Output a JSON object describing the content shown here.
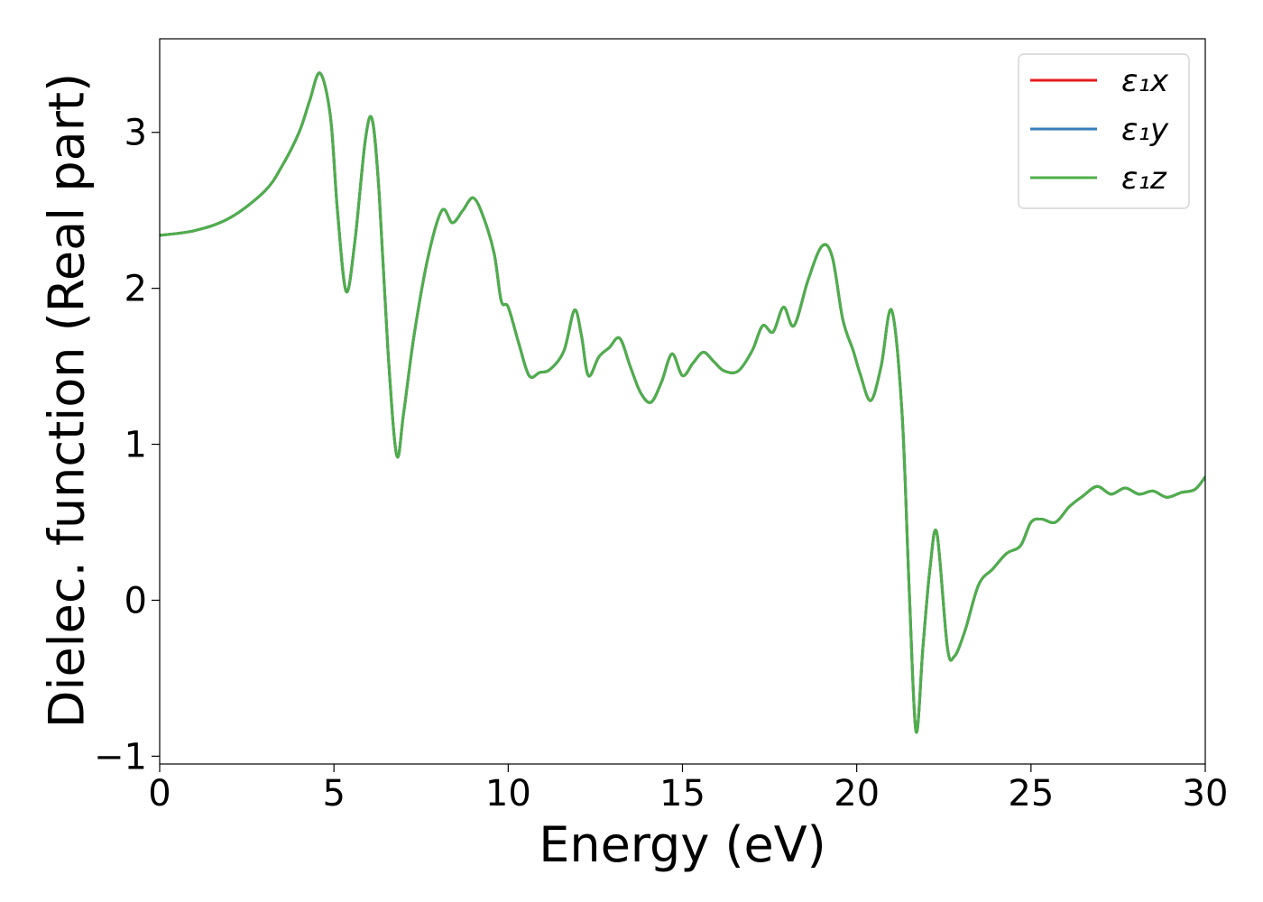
{
  "chart_data": {
    "type": "line",
    "title": "",
    "xlabel": "Energy (eV)",
    "ylabel": "Dielec. function (Real part)",
    "xlim": [
      0,
      30
    ],
    "ylim": [
      -1.05,
      3.6
    ],
    "xticks": [
      0,
      5,
      10,
      15,
      20,
      25,
      30
    ],
    "xtick_labels": [
      "0",
      "5",
      "10",
      "15",
      "20",
      "25",
      "30"
    ],
    "yticks": [
      -1,
      0,
      1,
      2,
      3
    ],
    "ytick_labels": [
      "−1",
      "0",
      "1",
      "2",
      "3"
    ],
    "grid": false,
    "legend_position": "top-right",
    "series": [
      {
        "name": "ε₁x",
        "color": "#e41a1c"
      },
      {
        "name": "ε₁y",
        "color": "#377eb8"
      },
      {
        "name": "ε₁z",
        "color": "#4daf4a"
      }
    ],
    "x": [
      0,
      1,
      2,
      3,
      3.5,
      4,
      4.3,
      4.6,
      4.9,
      5.1,
      5.35,
      5.6,
      5.9,
      6.1,
      6.3,
      6.55,
      6.8,
      7.0,
      7.3,
      7.7,
      8.1,
      8.4,
      8.7,
      9.0,
      9.3,
      9.6,
      9.8,
      10.0,
      10.3,
      10.6,
      10.9,
      11.2,
      11.6,
      11.9,
      12.1,
      12.3,
      12.6,
      12.9,
      13.2,
      13.5,
      13.8,
      14.1,
      14.4,
      14.7,
      15.0,
      15.3,
      15.6,
      15.9,
      16.2,
      16.6,
      17.0,
      17.3,
      17.6,
      17.9,
      18.2,
      18.6,
      19.0,
      19.3,
      19.6,
      19.9,
      20.1,
      20.4,
      20.7,
      21.0,
      21.3,
      21.5,
      21.7,
      21.9,
      22.1,
      22.3,
      22.6,
      22.8,
      23.1,
      23.5,
      23.9,
      24.3,
      24.7,
      25.0,
      25.3,
      25.7,
      26.1,
      26.5,
      26.9,
      27.3,
      27.7,
      28.1,
      28.5,
      28.9,
      29.3,
      29.7,
      30.0
    ],
    "y_shared": [
      2.34,
      2.37,
      2.45,
      2.62,
      2.78,
      3.0,
      3.2,
      3.38,
      3.1,
      2.5,
      1.98,
      2.3,
      2.95,
      3.08,
      2.6,
      1.6,
      0.93,
      1.2,
      1.7,
      2.2,
      2.5,
      2.42,
      2.5,
      2.58,
      2.45,
      2.22,
      1.92,
      1.88,
      1.65,
      1.44,
      1.46,
      1.48,
      1.6,
      1.86,
      1.7,
      1.44,
      1.56,
      1.62,
      1.68,
      1.5,
      1.33,
      1.27,
      1.4,
      1.58,
      1.44,
      1.52,
      1.59,
      1.53,
      1.47,
      1.47,
      1.6,
      1.76,
      1.72,
      1.88,
      1.76,
      2.05,
      2.27,
      2.2,
      1.8,
      1.6,
      1.45,
      1.28,
      1.5,
      1.86,
      1.2,
      0.1,
      -0.84,
      -0.3,
      0.2,
      0.43,
      -0.3,
      -0.36,
      -0.2,
      0.1,
      0.2,
      0.3,
      0.35,
      0.5,
      0.52,
      0.5,
      0.6,
      0.67,
      0.73,
      0.68,
      0.72,
      0.68,
      0.7,
      0.66,
      0.69,
      0.71,
      0.79
    ]
  }
}
